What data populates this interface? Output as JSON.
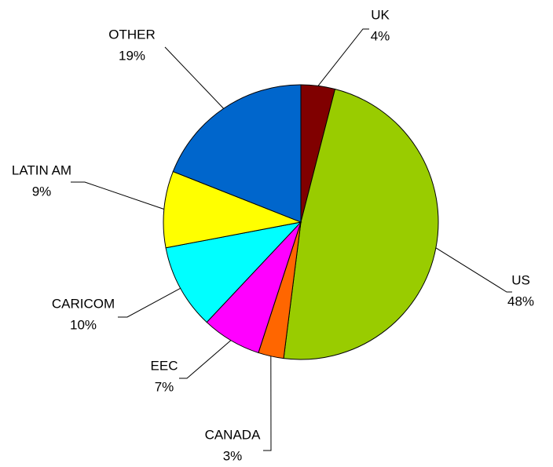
{
  "chart_data": {
    "type": "pie",
    "categories": [
      "UK",
      "US",
      "CANADA",
      "EEC",
      "CARICOM",
      "LATIN AM",
      "OTHER"
    ],
    "values": [
      4,
      48,
      3,
      7,
      10,
      9,
      19
    ],
    "value_labels": [
      "4%",
      "48%",
      "3%",
      "7%",
      "10%",
      "9%",
      "19%"
    ],
    "colors": [
      "#800000",
      "#99cc00",
      "#ff6600",
      "#ff00ff",
      "#00ffff",
      "#ffff00",
      "#0066cc"
    ]
  }
}
